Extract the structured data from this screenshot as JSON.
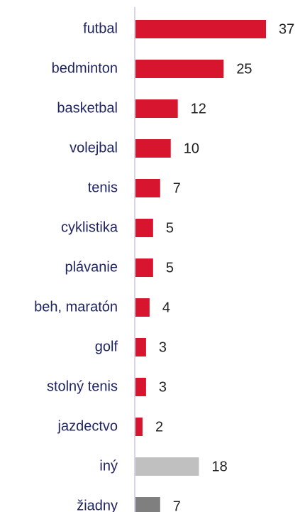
{
  "chart_data": {
    "type": "bar",
    "orientation": "horizontal",
    "categories": [
      "futbal",
      "bedminton",
      "basketbal",
      "volejbal",
      "tenis",
      "cyklistika",
      "plávanie",
      "beh, maratón",
      "golf",
      "stolný tenis",
      "jazdectvo",
      "iný",
      "žiadny"
    ],
    "values": [
      37,
      25,
      12,
      10,
      7,
      5,
      5,
      4,
      3,
      3,
      2,
      18,
      7
    ],
    "colors": [
      "#d7152f",
      "#d7152f",
      "#d7152f",
      "#d7152f",
      "#d7152f",
      "#d7152f",
      "#d7152f",
      "#d7152f",
      "#d7152f",
      "#d7152f",
      "#d7152f",
      "#c0c0c0",
      "#7f7f7f"
    ]
  }
}
